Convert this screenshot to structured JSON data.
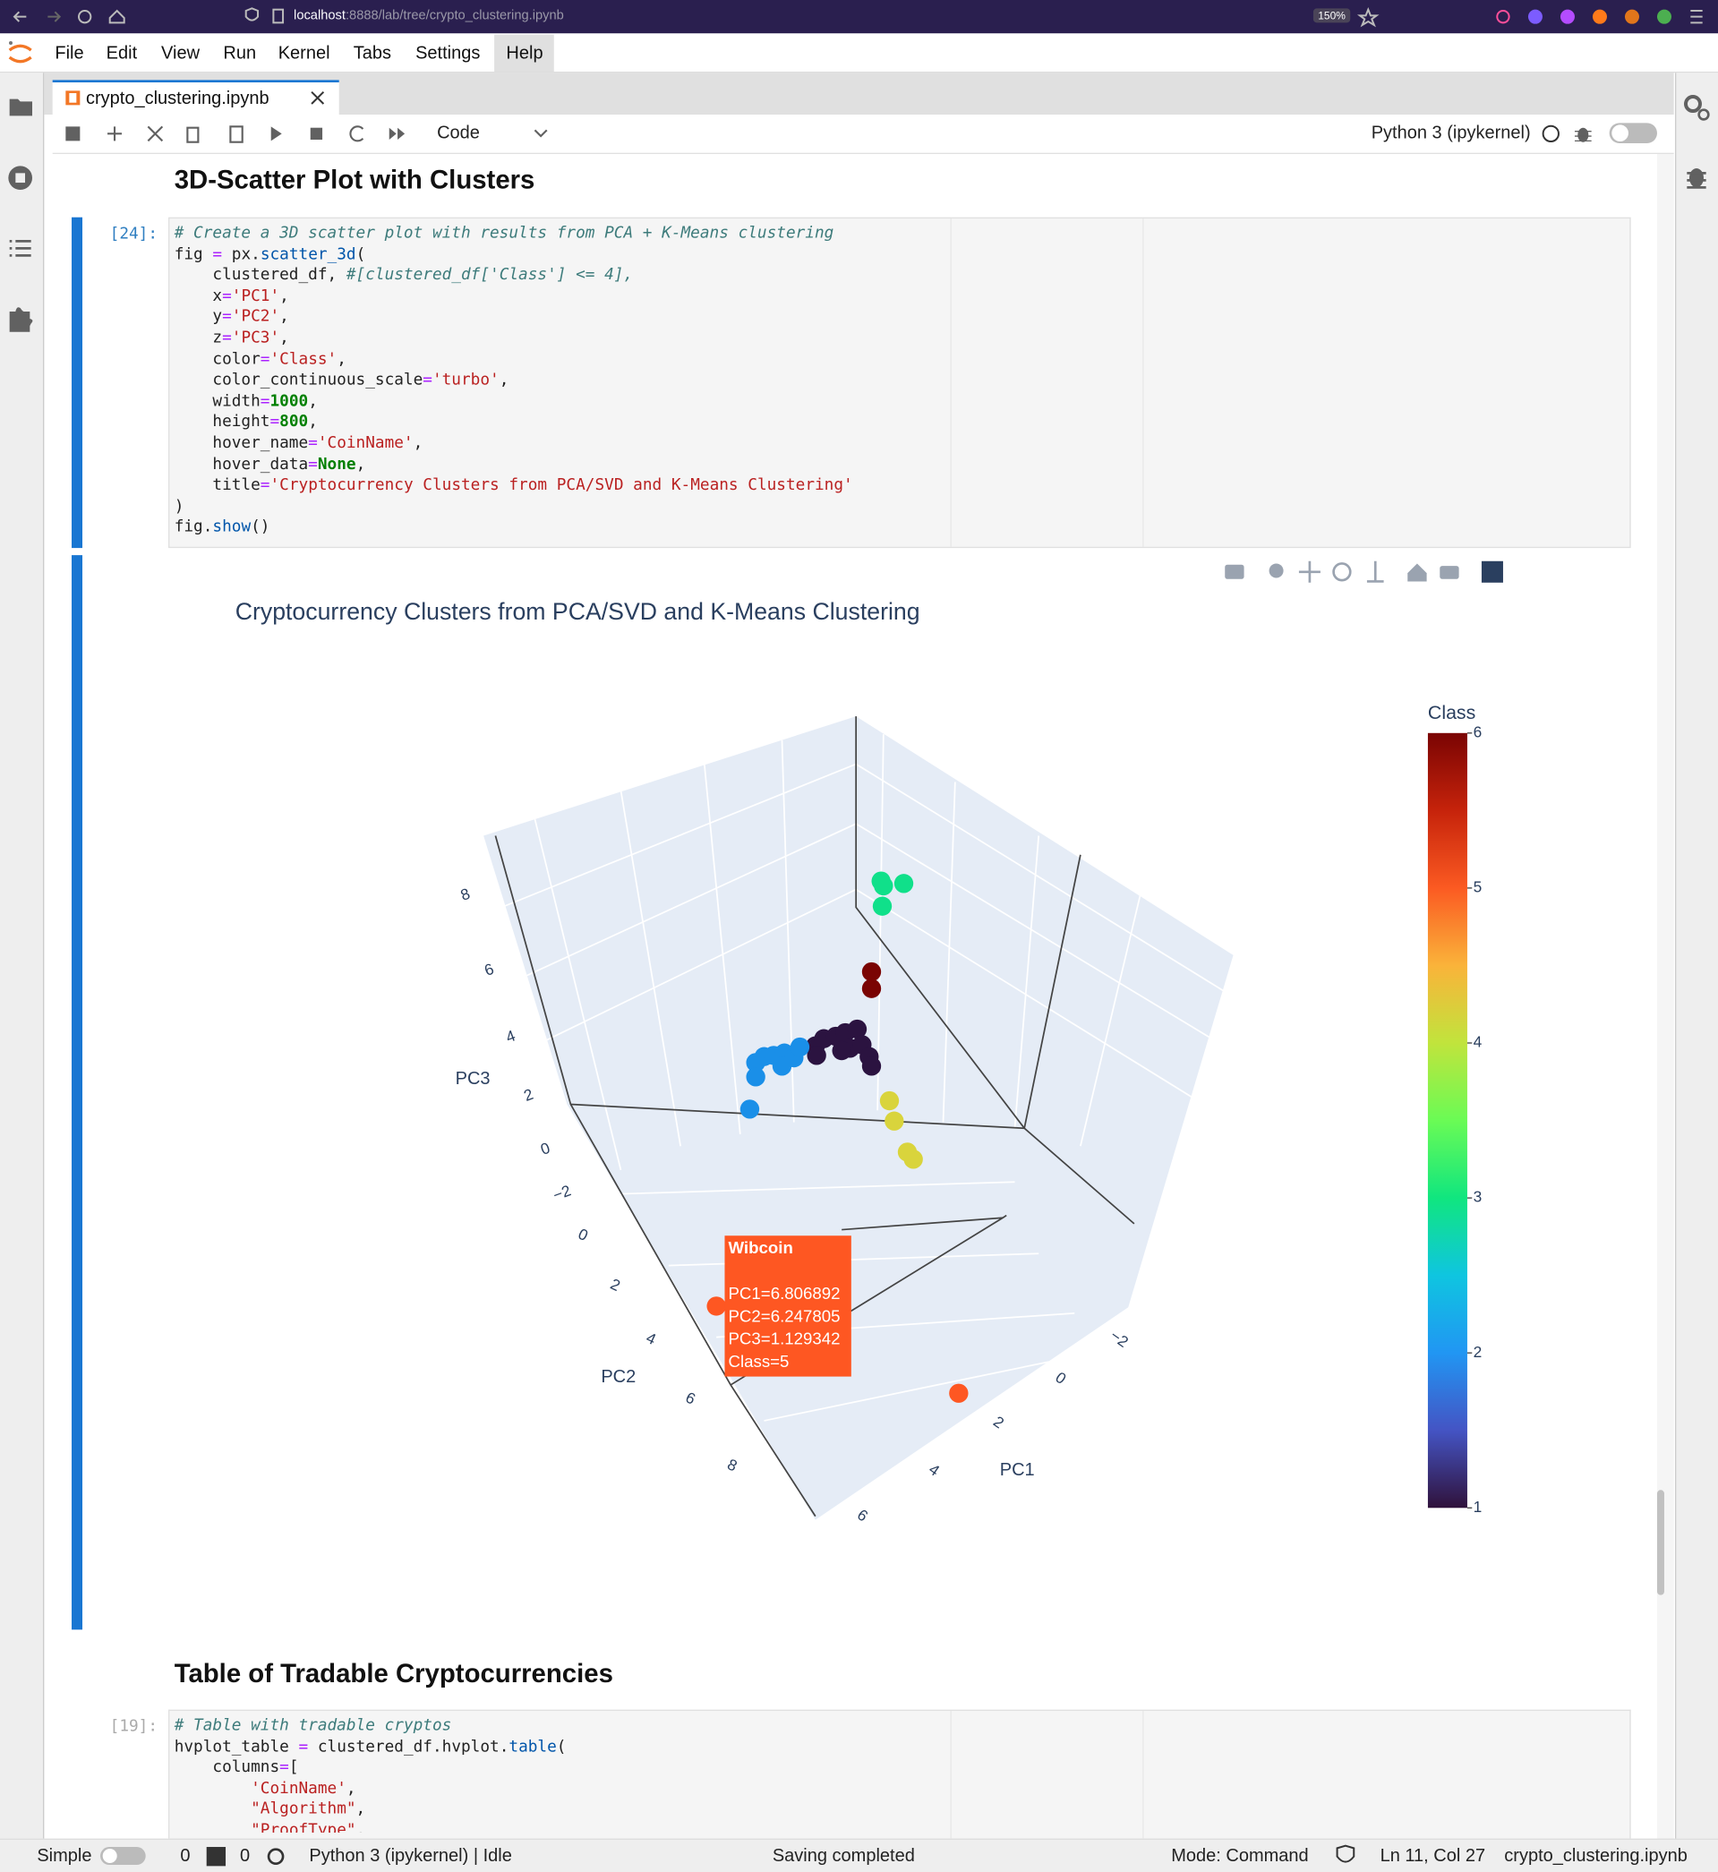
{
  "browser": {
    "url_host": "localhost",
    "url_path": ":8888/lab/tree/crypto_clustering.ipynb",
    "zoom": "150%"
  },
  "menu": [
    "File",
    "Edit",
    "View",
    "Run",
    "Kernel",
    "Tabs",
    "Settings",
    "Help"
  ],
  "tab": {
    "title": "crypto_clustering.ipynb"
  },
  "toolbar": {
    "cell_type": "Code",
    "kernel": "Python 3 (ipykernel)"
  },
  "heading_1": "3D-Scatter Plot with Clusters",
  "cell_1": {
    "prompt": "[24]:",
    "lines": [
      "# Create a 3D scatter plot with results from PCA + K-Means clustering",
      "fig = px.scatter_3d(",
      "    clustered_df, #[clustered_df['Class'] <= 4],",
      "    x='PC1',",
      "    y='PC2',",
      "    z='PC3',",
      "    color='Class',",
      "    color_continuous_scale='turbo',",
      "    width=1000,",
      "    height=800,",
      "    hover_name='CoinName',",
      "    hover_data=None,",
      "    title='Cryptocurrency Clusters from PCA/SVD and K-Means Clustering'",
      ")",
      "fig.show()"
    ]
  },
  "plot": {
    "title": "Cryptocurrency Clusters from PCA/SVD and K-Means Clustering",
    "x_label": "PC1",
    "y_label": "PC2",
    "z_label": "PC3",
    "x_ticks": [
      "−2",
      "0",
      "2",
      "4",
      "6"
    ],
    "y_ticks": [
      "0",
      "2",
      "4",
      "6",
      "8"
    ],
    "z_ticks": [
      "−2",
      "0",
      "2",
      "4",
      "6",
      "8"
    ],
    "colorbar": {
      "title": "Class",
      "range": [
        1,
        6
      ],
      "ticks": [
        1,
        2,
        3,
        4,
        5,
        6
      ]
    },
    "tooltip": {
      "name": "Wibcoin",
      "lines": [
        "PC1=6.806892",
        "PC2=6.247805",
        "PC3=1.129342",
        "Class=5"
      ]
    }
  },
  "heading_2": "Table of Tradable Cryptocurrencies",
  "cell_2": {
    "prompt": "[19]:",
    "lines": [
      "# Table with tradable cryptos",
      "hvplot_table = clustered_df.hvplot.table(",
      "    columns=[",
      "        'CoinName',",
      "        \"Algorithm\",",
      "        \"ProofType\","
    ]
  },
  "status_bar": {
    "mode_label": "Simple",
    "terminals": "0",
    "kernels": "0",
    "kernel_status": "Python 3 (ipykernel) | Idle",
    "save_status": "Saving completed",
    "mode": "Mode: Command",
    "cursor": "Ln 11, Col 27",
    "file": "crypto_clustering.ipynb"
  }
}
